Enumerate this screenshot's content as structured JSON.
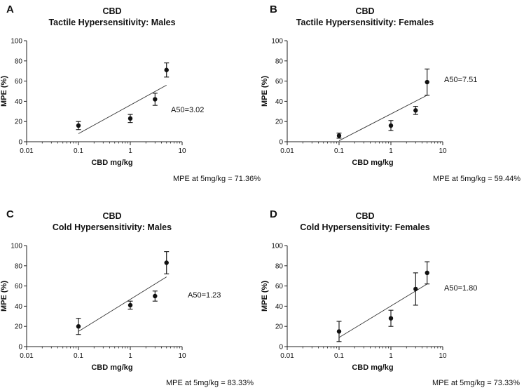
{
  "chart_data": [
    {
      "type": "scatter",
      "panel_label": "A",
      "title": [
        "CBD",
        "Tactile Hypersensitivity: Males"
      ],
      "xlabel": "CBD mg/kg",
      "ylabel": "MPE (%)",
      "xscale": "log",
      "xlim": [
        0.01,
        10
      ],
      "xticks": [
        0.01,
        0.1,
        1,
        10
      ],
      "xtick_labels": [
        "0.01",
        "0.1",
        "1",
        "10"
      ],
      "ylim": [
        0,
        100
      ],
      "yticks": [
        0,
        20,
        40,
        60,
        80,
        100
      ],
      "points": [
        {
          "x": 0.1,
          "y": 16,
          "err": 4
        },
        {
          "x": 1,
          "y": 23,
          "err": 4
        },
        {
          "x": 3,
          "y": 42,
          "err": 6
        },
        {
          "x": 5,
          "y": 71,
          "err": 7
        }
      ],
      "fit": [
        [
          0.1,
          8
        ],
        [
          5,
          56
        ]
      ],
      "annotation": "A50=3.02",
      "footnote": "MPE at 5mg/kg = 71.36%"
    },
    {
      "type": "scatter",
      "panel_label": "B",
      "title": [
        "CBD",
        "Tactile Hypersensitivity: Females"
      ],
      "xlabel": "CBD mg/kg",
      "ylabel": "MPE (%)",
      "xscale": "log",
      "xlim": [
        0.01,
        10
      ],
      "xticks": [
        0.01,
        0.1,
        1,
        10
      ],
      "xtick_labels": [
        "0.01",
        "0.1",
        "1",
        "10"
      ],
      "ylim": [
        0,
        100
      ],
      "yticks": [
        0,
        20,
        40,
        60,
        80,
        100
      ],
      "points": [
        {
          "x": 0.1,
          "y": 6,
          "err": 2.5
        },
        {
          "x": 1,
          "y": 16,
          "err": 5
        },
        {
          "x": 3,
          "y": 31,
          "err": 4
        },
        {
          "x": 5,
          "y": 59,
          "err": 13
        }
      ],
      "fit": [
        [
          0.1,
          1
        ],
        [
          5,
          46
        ]
      ],
      "annotation": "A50=7.51",
      "footnote": "MPE at 5mg/kg = 59.44%"
    },
    {
      "type": "scatter",
      "panel_label": "C",
      "title": [
        "CBD",
        "Cold Hypersensitivity: Males"
      ],
      "xlabel": "CBD mg/kg",
      "ylabel": "MPE (%)",
      "xscale": "log",
      "xlim": [
        0.01,
        10
      ],
      "xticks": [
        0.01,
        0.1,
        1,
        10
      ],
      "xtick_labels": [
        "0.01",
        "0.1",
        "1",
        "10"
      ],
      "ylim": [
        0,
        100
      ],
      "yticks": [
        0,
        20,
        40,
        60,
        80,
        100
      ],
      "points": [
        {
          "x": 0.1,
          "y": 20,
          "err": 8
        },
        {
          "x": 1,
          "y": 41,
          "err": 4
        },
        {
          "x": 3,
          "y": 50,
          "err": 5
        },
        {
          "x": 5,
          "y": 83,
          "err": 11
        }
      ],
      "fit": [
        [
          0.1,
          15
        ],
        [
          5,
          69
        ]
      ],
      "annotation": "A50=1.23",
      "footnote": "MPE at 5mg/kg = 83.33%"
    },
    {
      "type": "scatter",
      "panel_label": "D",
      "title": [
        "CBD",
        "Cold Hypersensitivity: Females"
      ],
      "xlabel": "CBD mg/kg",
      "ylabel": "MPE (%)",
      "xscale": "log",
      "xlim": [
        0.01,
        10
      ],
      "xticks": [
        0.01,
        0.1,
        1,
        10
      ],
      "xtick_labels": [
        "0.01",
        "0.1",
        "1",
        "10"
      ],
      "ylim": [
        0,
        100
      ],
      "yticks": [
        0,
        20,
        40,
        60,
        80,
        100
      ],
      "points": [
        {
          "x": 0.1,
          "y": 15,
          "err": 10
        },
        {
          "x": 1,
          "y": 28,
          "err": 8
        },
        {
          "x": 3,
          "y": 57,
          "err": 16
        },
        {
          "x": 5,
          "y": 73,
          "err": 11
        }
      ],
      "fit": [
        [
          0.1,
          9
        ],
        [
          5,
          62
        ]
      ],
      "annotation": "A50=1.80",
      "footnote": "MPE at 5mg/kg = 73.33%"
    }
  ]
}
